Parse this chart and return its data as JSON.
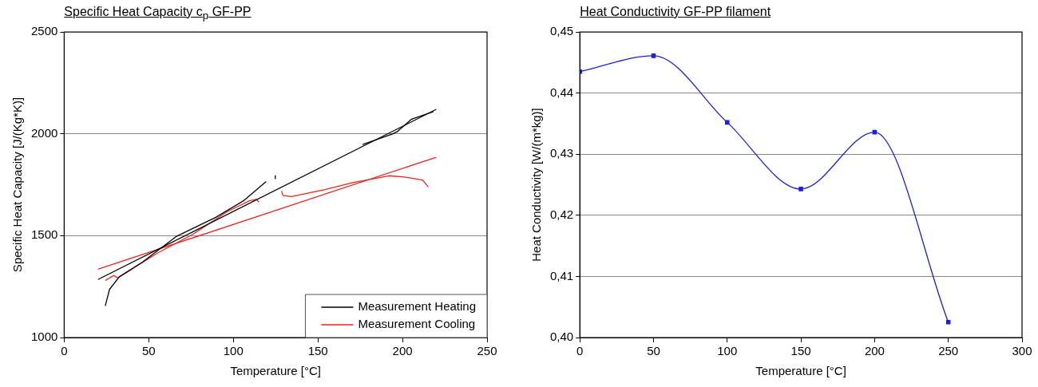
{
  "chart_data": [
    {
      "type": "line",
      "title": "Specific Heat Capacity c$_{p}$ GF-PP",
      "xlabel": "Temperature [°C]",
      "ylabel": "Specific Heat Capacity [J/(Kg*K)]",
      "xlim": [
        0,
        250
      ],
      "xticks": [
        0,
        50,
        100,
        150,
        200,
        250
      ],
      "ylim": [
        1000,
        2500
      ],
      "yticks": [
        1000,
        1500,
        2000,
        2500
      ],
      "grid": "y",
      "legend": "bottom right",
      "marker": "none",
      "line_style": "solid",
      "series": [
        {
          "name": "Measurement Heating",
          "color": "#000000",
          "x": [
            24.3,
            26.8,
            32.6,
            46.6,
            66.5,
            89.6,
            106,
            119.4,
            122,
            124.8,
            124.8,
            150,
            176.4,
            193.8,
            197,
            205.4,
            218.3
          ],
          "values": [
            1155,
            1236,
            1298,
            1372,
            1497,
            1590,
            1671,
            1766,
            null,
            1777,
            1796,
            null,
            1947,
            1998,
            2011,
            2072,
            2109
          ]
        },
        {
          "color": "#000000",
          "x": [
            20,
            220
          ],
          "values": [
            1285,
            2120
          ]
        },
        {
          "name": "Measurement Cooling",
          "color": "#e8241c",
          "x": [
            24.3,
            29.3,
            31.7,
            36.7,
            54.9,
            76.4,
            96.2,
            109.5,
            113.6,
            115.2,
            122,
            128.5,
            129.3,
            134.3,
            154.1,
            170.6,
            192.1,
            202,
            211.9,
            215.3
          ],
          "values": [
            1280,
            1304,
            1293,
            1318,
            1413,
            1508,
            1617,
            1671,
            1678,
            1665,
            null,
            1719,
            1698,
            1692,
            1726,
            1760,
            1794,
            1787,
            1773,
            1739
          ]
        },
        {
          "color": "#e8241c",
          "x": [
            20,
            220
          ],
          "values": [
            1335,
            1885
          ]
        }
      ]
    },
    {
      "type": "line",
      "title": "Heat Conductivity GF-PP filament",
      "xlabel": "Temperature [°C]",
      "ylabel": "Heat Conductivity [W/(m*kg)]",
      "xlim": [
        0,
        300
      ],
      "xticks": [
        0,
        50,
        100,
        150,
        200,
        250,
        300
      ],
      "ylim": [
        0.4,
        0.45
      ],
      "yticks": [
        {
          "value": 0.4,
          "label": "0,40"
        },
        {
          "value": 0.41,
          "label": "0,41"
        },
        {
          "value": 0.42,
          "label": "0,42"
        },
        {
          "value": 0.43,
          "label": "0,43"
        },
        {
          "value": 0.44,
          "label": "0,44"
        },
        {
          "value": 0.45,
          "label": "0,45"
        }
      ],
      "grid": "y",
      "marker": "square",
      "line_style": "solid",
      "series": [
        {
          "color": "#1f1fd6",
          "x": [
            0,
            50,
            100,
            150,
            200,
            250
          ],
          "values": [
            0.4435,
            0.4461,
            0.4352,
            0.4243,
            0.4336,
            0.4025
          ]
        }
      ]
    }
  ]
}
